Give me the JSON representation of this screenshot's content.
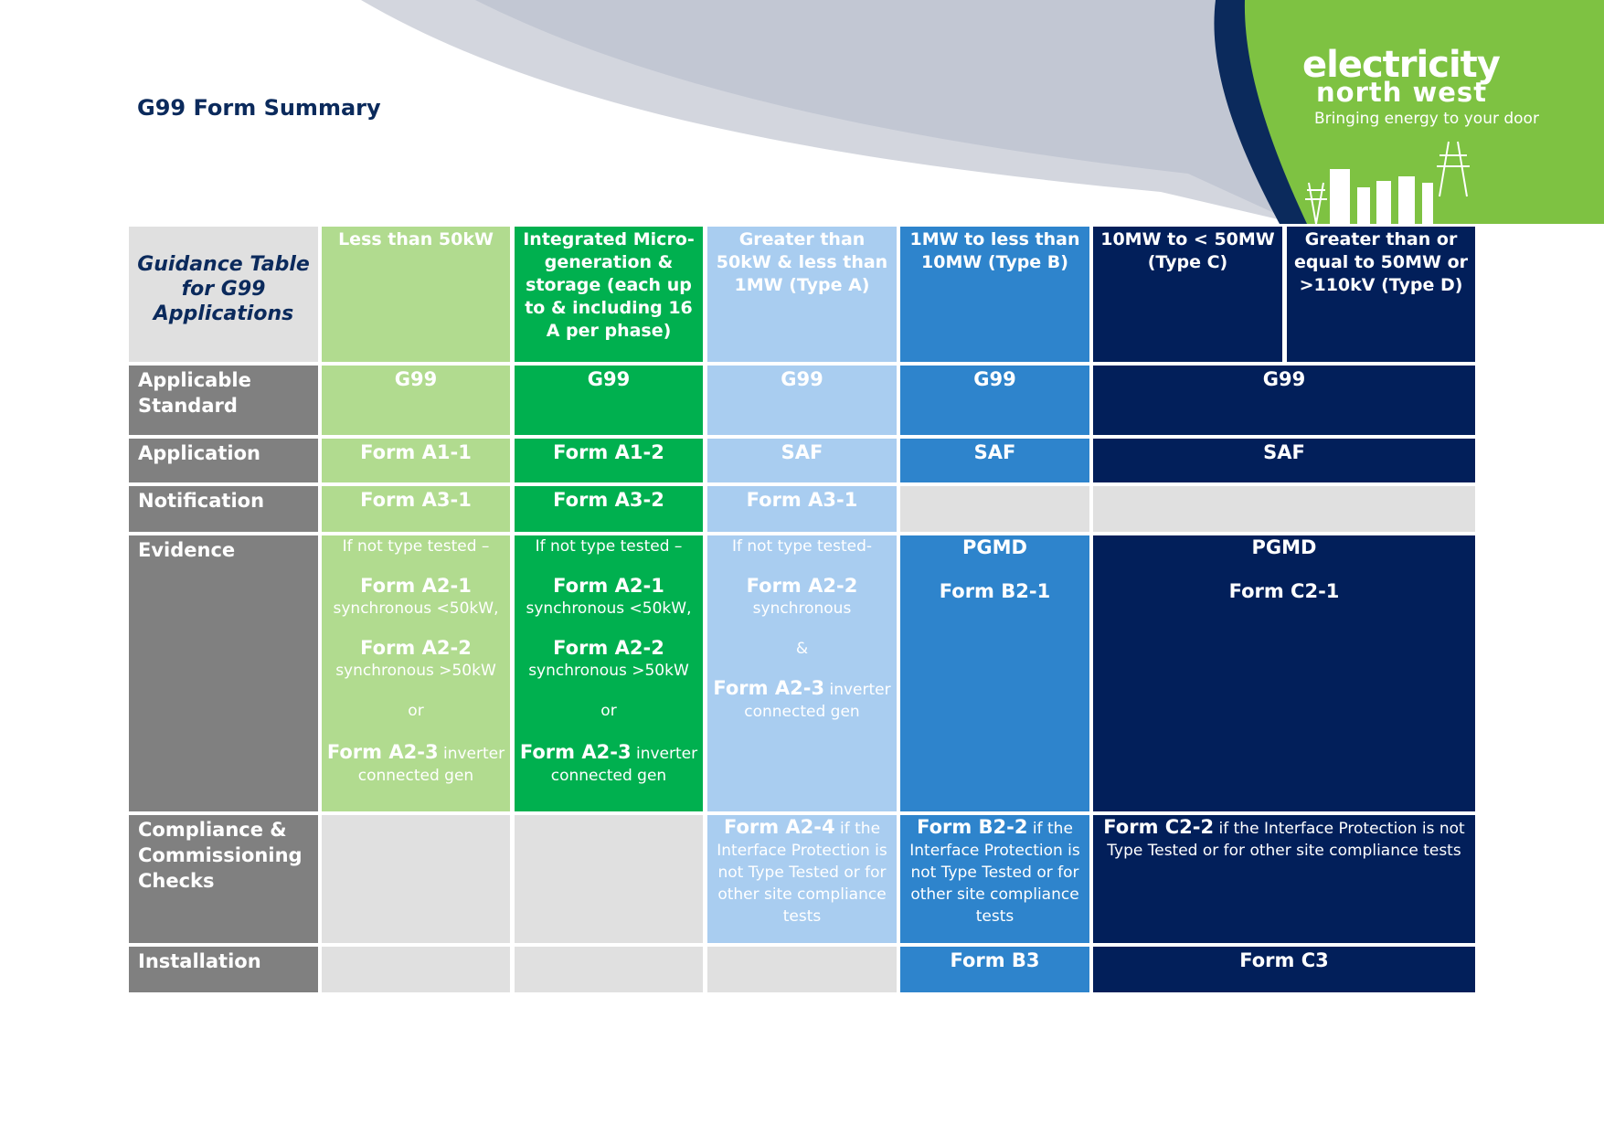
{
  "page": {
    "title": "G99 Form Summary"
  },
  "logo": {
    "line1": "electricity",
    "line2": "north west",
    "tagline": "Bringing energy to your door"
  },
  "colors": {
    "green_light": "#b1db8f",
    "green": "#00b04f",
    "blue_light": "#a9cdf0",
    "blue": "#2e84cc",
    "navy": "#021f5a",
    "grey": "#808080"
  },
  "table": {
    "guidance": "Guidance Table for G99 Applications",
    "headers": {
      "col1": "Less than 50kW",
      "col2": "Integrated Micro-generation & storage (each up to & including 16 A per phase)",
      "col3": "Greater than 50kW & less than 1MW (Type A)",
      "col4": "1MW to less than 10MW (Type B)",
      "col5": "10MW to < 50MW (Type C)",
      "col6": "Greater than or equal to 50MW or >110kV (Type D)"
    },
    "rows": {
      "standard": {
        "label": "Applicable Standard",
        "c1": "G99",
        "c2": "G99",
        "c3": "G99",
        "c4": "G99",
        "c56": "G99"
      },
      "application": {
        "label": "Application",
        "c1": "Form A1-1",
        "c2": "Form A1-2",
        "c3": "SAF",
        "c4": "SAF",
        "c56": "SAF"
      },
      "notification": {
        "label": "Notification",
        "c1": "Form A3-1",
        "c2": "Form A3-2",
        "c3": "Form A3-1"
      },
      "evidence": {
        "label": "Evidence",
        "c1": {
          "intro": "If not type tested –",
          "f1": "Form A2-1",
          "f1_desc": "synchronous <50kW,",
          "f2": "Form A2-2",
          "f2_desc": "synchronous >50kW",
          "or": "or",
          "f3": "Form A2-3",
          "f3_suffix": " inverter",
          "f3_desc": "connected gen"
        },
        "c2": {
          "intro": "If not type tested –",
          "f1": "Form A2-1",
          "f1_desc": "synchronous <50kW,",
          "f2": "Form A2-2",
          "f2_desc": "synchronous >50kW",
          "or": "or",
          "f3": "Form A2-3",
          "f3_suffix": " inverter",
          "f3_desc": "connected gen"
        },
        "c3": {
          "intro": "If not type tested-",
          "f1": "Form A2-2",
          "f1_desc": "synchronous",
          "amp": "&",
          "f2": "Form A2-3",
          "f2_suffix": " inverter",
          "f2_desc": "connected gen"
        },
        "c4": {
          "line1": "PGMD",
          "line2": "Form B2-1"
        },
        "c56": {
          "line1": "PGMD",
          "line2": "Form C2-1"
        }
      },
      "compliance": {
        "label": "Compliance & Commissioning Checks",
        "c3": {
          "form": "Form A2-4",
          "text": " if the Interface Protection is not Type Tested or for other site compliance tests"
        },
        "c4": {
          "form": "Form B2-2",
          "text": " if the Interface Protection is not Type Tested or for other site compliance tests"
        },
        "c56": {
          "form": "Form C2-2",
          "text": " if the Interface Protection is not Type Tested or for other site compliance tests"
        }
      },
      "installation": {
        "label": "Installation",
        "c4": "Form B3",
        "c56": "Form C3"
      }
    }
  }
}
